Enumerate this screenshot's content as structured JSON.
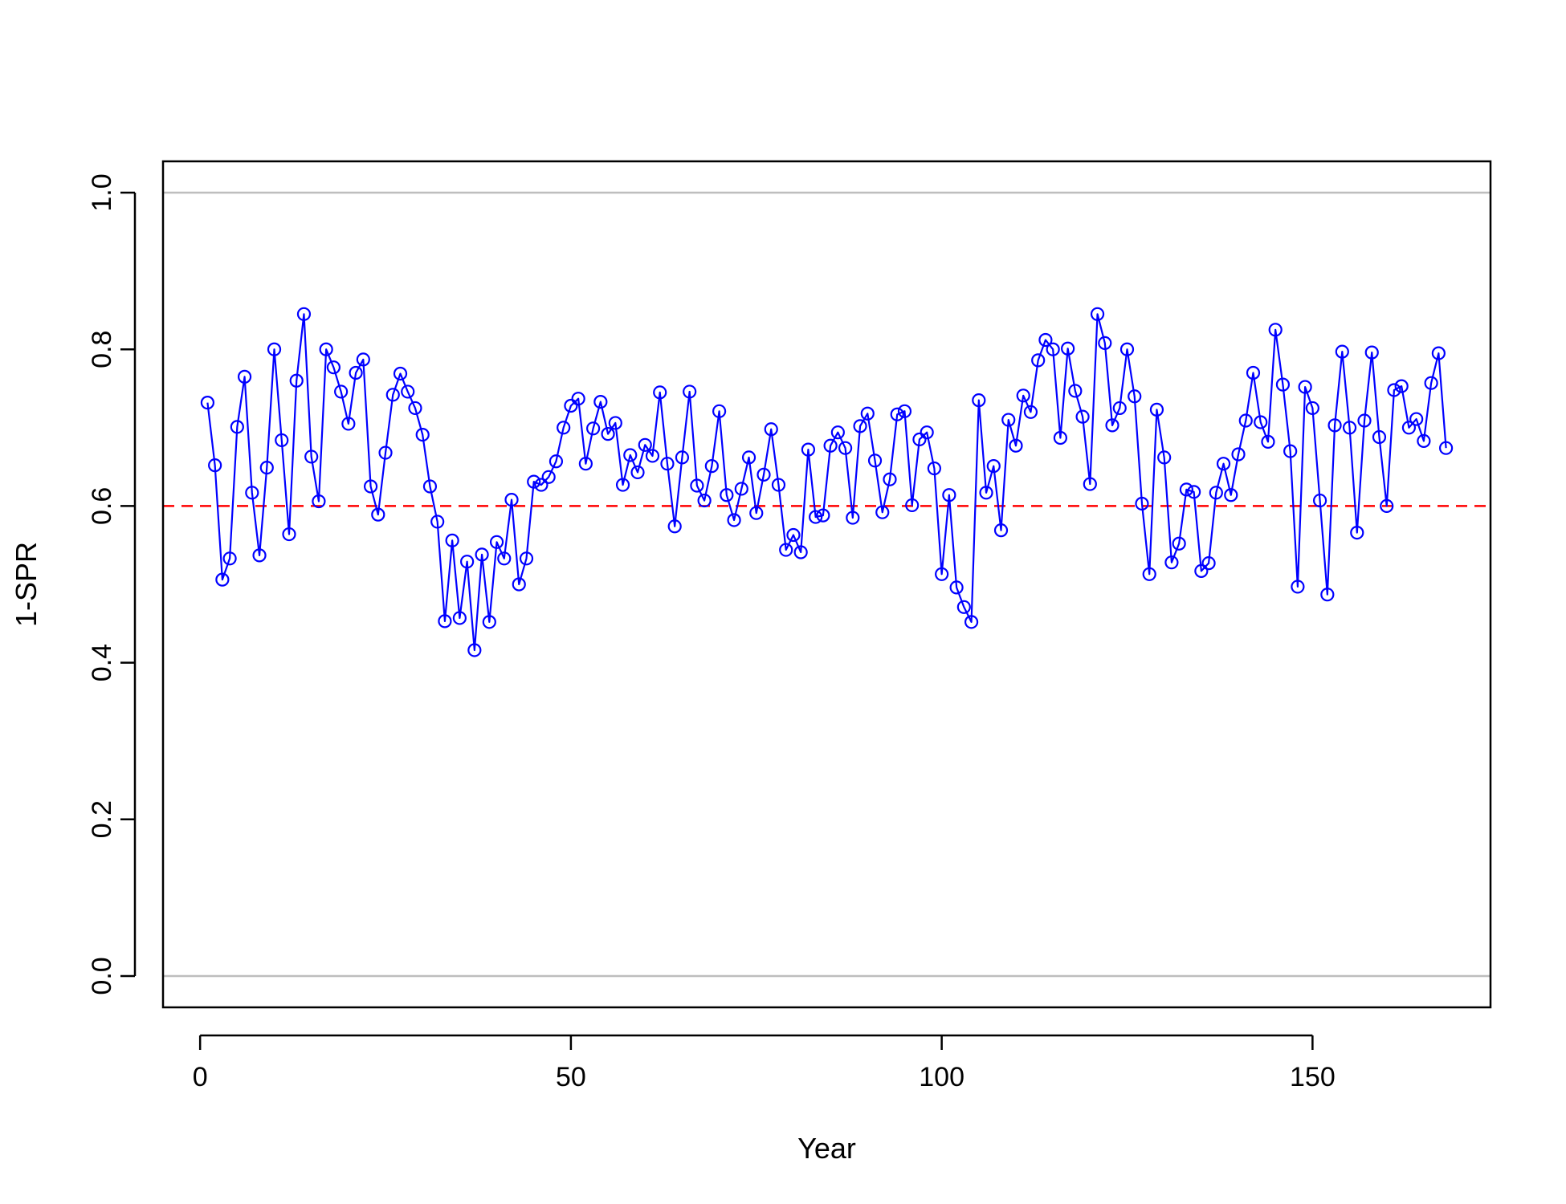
{
  "chart_data": {
    "type": "line",
    "title": "",
    "xlabel": "Year",
    "ylabel": "1-SPR",
    "xlim": [
      -5,
      174
    ],
    "ylim": [
      -0.04,
      1.04
    ],
    "xticks": [
      0,
      50,
      100,
      150
    ],
    "xtick_labels": [
      "0",
      "50",
      "100",
      "150"
    ],
    "yticks": [
      0.0,
      0.2,
      0.4,
      0.6,
      0.8,
      1.0
    ],
    "ytick_labels": [
      "0.0",
      "0.2",
      "0.4",
      "0.6",
      "0.8",
      "1.0"
    ],
    "grid": false,
    "legend": "none",
    "reference_lines": [
      {
        "y": 0.0,
        "color": "#bebebe",
        "style": "solid"
      },
      {
        "y": 1.0,
        "color": "#bebebe",
        "style": "solid"
      },
      {
        "y": 0.6,
        "color": "#ff0000",
        "style": "dashed"
      }
    ],
    "series": [
      {
        "color": "#0000ff",
        "marker": "open-circle",
        "x_start": 1,
        "x_step": 1,
        "values": [
          0.732,
          0.652,
          0.506,
          0.533,
          0.701,
          0.765,
          0.617,
          0.537,
          0.649,
          0.8,
          0.684,
          0.564,
          0.76,
          0.845,
          0.663,
          0.606,
          0.8,
          0.777,
          0.746,
          0.705,
          0.77,
          0.787,
          0.625,
          0.589,
          0.668,
          0.742,
          0.769,
          0.746,
          0.725,
          0.691,
          0.625,
          0.58,
          0.453,
          0.556,
          0.457,
          0.529,
          0.416,
          0.538,
          0.452,
          0.554,
          0.533,
          0.608,
          0.5,
          0.533,
          0.631,
          0.627,
          0.637,
          0.657,
          0.7,
          0.728,
          0.737,
          0.654,
          0.699,
          0.733,
          0.692,
          0.706,
          0.627,
          0.665,
          0.643,
          0.678,
          0.664,
          0.745,
          0.654,
          0.574,
          0.662,
          0.746,
          0.626,
          0.607,
          0.651,
          0.721,
          0.614,
          0.582,
          0.622,
          0.662,
          0.591,
          0.64,
          0.698,
          0.627,
          0.544,
          0.563,
          0.541,
          0.672,
          0.586,
          0.588,
          0.677,
          0.694,
          0.674,
          0.585,
          0.702,
          0.718,
          0.658,
          0.592,
          0.634,
          0.717,
          0.721,
          0.601,
          0.685,
          0.694,
          0.648,
          0.513,
          0.614,
          0.496,
          0.471,
          0.452,
          0.735,
          0.617,
          0.651,
          0.569,
          0.71,
          0.677,
          0.741,
          0.72,
          0.786,
          0.812,
          0.8,
          0.687,
          0.801,
          0.747,
          0.714,
          0.628,
          0.845,
          0.808,
          0.703,
          0.725,
          0.8,
          0.74,
          0.603,
          0.513,
          0.723,
          0.662,
          0.528,
          0.552,
          0.621,
          0.618,
          0.517,
          0.527,
          0.617,
          0.654,
          0.614,
          0.666,
          0.709,
          0.77,
          0.707,
          0.682,
          0.825,
          0.755,
          0.67,
          0.497,
          0.752,
          0.725,
          0.607,
          0.487,
          0.703,
          0.797,
          0.7,
          0.566,
          0.709,
          0.796,
          0.688,
          0.6,
          0.748,
          0.753,
          0.7,
          0.711,
          0.683,
          0.757,
          0.795,
          0.674
        ]
      }
    ]
  }
}
